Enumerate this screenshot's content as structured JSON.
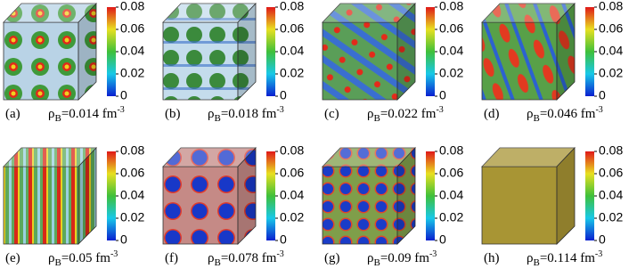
{
  "colorbar": {
    "range": [
      0,
      0.08
    ],
    "ticks": [
      0,
      0.02,
      0.04,
      0.06,
      0.08
    ]
  },
  "panels": [
    {
      "label": "(a)",
      "symbol": "ρ",
      "sub": "B",
      "text": "=0.014 fm",
      "sup": "-3"
    },
    {
      "label": "(b)",
      "symbol": "ρ",
      "sub": "B",
      "text": "=0.018 fm",
      "sup": "-3"
    },
    {
      "label": "(c)",
      "symbol": "ρ",
      "sub": "B",
      "text": "=0.022 fm",
      "sup": "-3"
    },
    {
      "label": "(d)",
      "symbol": "ρ",
      "sub": "B",
      "text": "=0.046 fm",
      "sup": "-3"
    },
    {
      "label": "(e)",
      "symbol": "ρ",
      "sub": "B",
      "text": "=0.05 fm",
      "sup": "-3"
    },
    {
      "label": "(f)",
      "symbol": "ρ",
      "sub": "B",
      "text": "=0.078 fm",
      "sup": "-3"
    },
    {
      "label": "(g)",
      "symbol": "ρ",
      "sub": "B",
      "text": "=0.09 fm",
      "sup": "-3"
    },
    {
      "label": "(h)",
      "symbol": "ρ",
      "sub": "B",
      "text": "=0.114 fm",
      "sup": "-3"
    }
  ]
}
